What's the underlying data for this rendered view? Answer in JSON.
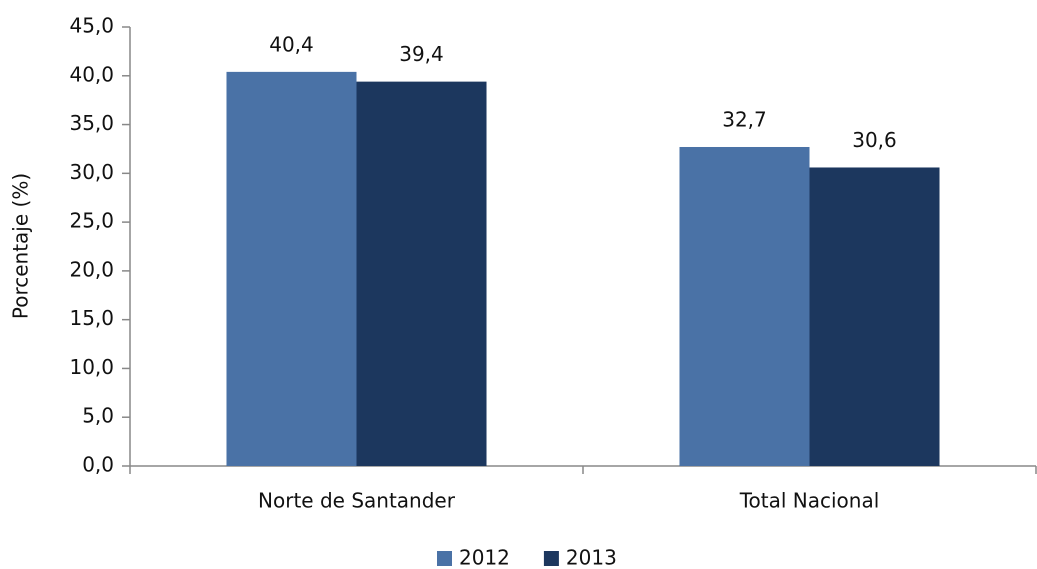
{
  "chart_data": {
    "type": "bar",
    "categories": [
      "Norte de Santander",
      "Total Nacional"
    ],
    "series": [
      {
        "name": "2012",
        "color": "#4a72a6",
        "values": [
          40.4,
          32.7
        ],
        "value_labels": [
          "40,4",
          "32,7"
        ]
      },
      {
        "name": "2013",
        "color": "#1c375e",
        "values": [
          39.4,
          30.6
        ],
        "value_labels": [
          "39,4",
          "30,6"
        ]
      }
    ],
    "ylabel": "Porcentaje (%)",
    "ylim": [
      0,
      45
    ],
    "yticks": [
      {
        "value": 0,
        "label": "0,0"
      },
      {
        "value": 5,
        "label": "5,0"
      },
      {
        "value": 10,
        "label": "10,0"
      },
      {
        "value": 15,
        "label": "15,0"
      },
      {
        "value": 20,
        "label": "20,0"
      },
      {
        "value": 25,
        "label": "25,0"
      },
      {
        "value": 30,
        "label": "30,0"
      },
      {
        "value": 35,
        "label": "35,0"
      },
      {
        "value": 40,
        "label": "40,0"
      },
      {
        "value": 45,
        "label": "45,0"
      }
    ],
    "legend": "bottom"
  }
}
